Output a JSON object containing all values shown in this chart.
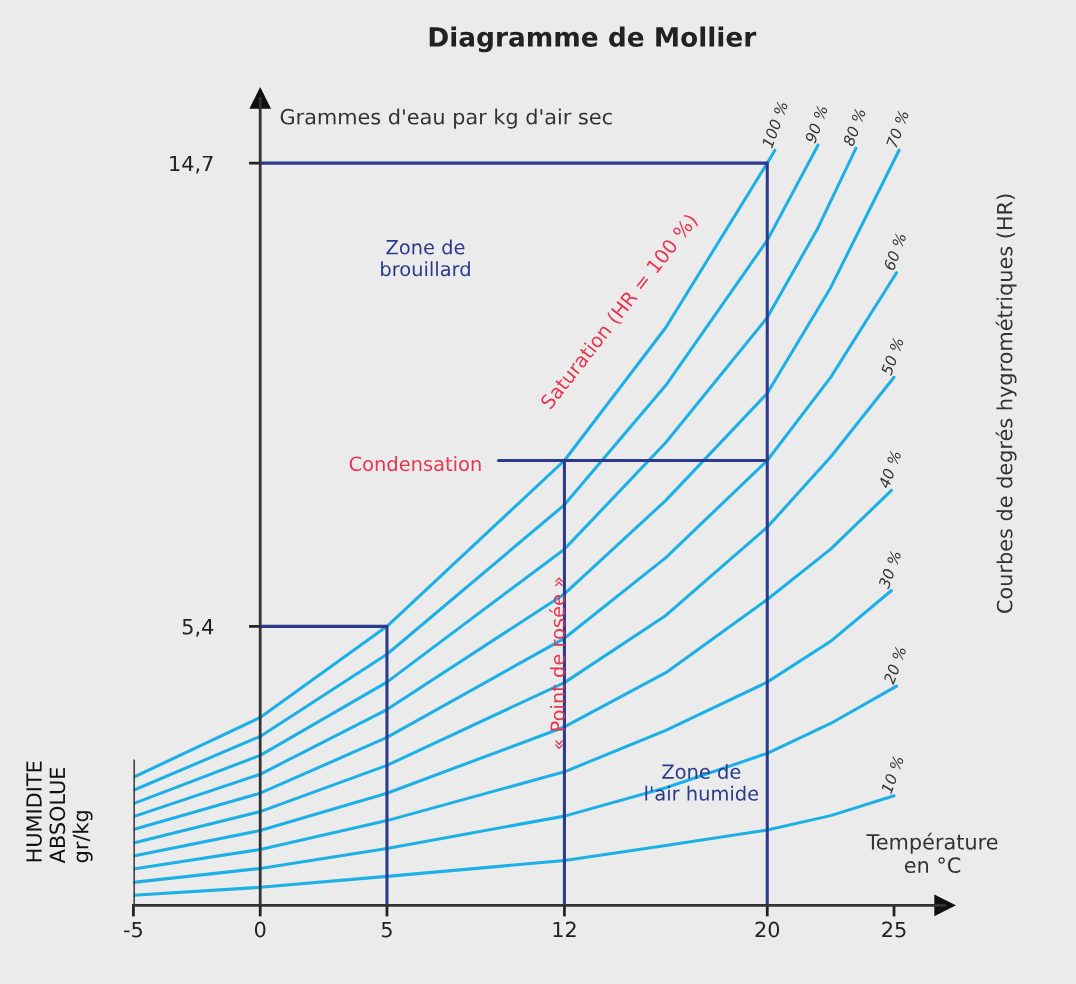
{
  "chart_data": {
    "type": "line",
    "title": "Diagramme de Mollier",
    "ylabel": "Grammes d'eau par kg d'air sec",
    "xlabel": "Température\nen °C",
    "annotations": [
      "HUMIDITE\nABSOLUE\ngr/kg",
      "Zone de\nbrouillard",
      "Zone de\nl'air humide",
      "Condensation",
      "Saturation (HR = 100 %)",
      "« Point de rosée »",
      "Courbes de degrés hygrométriques (HR)"
    ],
    "xlim": [
      -5,
      27
    ],
    "ylim": [
      -0.2,
      16
    ],
    "xticks": [
      {
        "value": -5,
        "label": "-5"
      },
      0,
      5,
      12,
      20,
      25
    ],
    "yticks": [
      {
        "value": 5.4,
        "label": "5,4"
      },
      {
        "value": 14.7,
        "label": "14,7"
      }
    ],
    "grid": false,
    "legend": false,
    "marker": "none",
    "line_style": "solid",
    "series": [
      {
        "name": "100 %",
        "color": "#1cb0e6",
        "x": [
          -5,
          0,
          5,
          12,
          16,
          20,
          20.3
        ],
        "values": [
          2.37,
          3.57,
          5.4,
          8.73,
          11.4,
          14.7,
          14.96
        ]
      },
      {
        "name": "90 %",
        "color": "#1cb0e6",
        "x": [
          -5,
          0,
          5,
          12,
          16,
          20,
          22
        ],
        "values": [
          2.11,
          3.19,
          4.84,
          7.84,
          10.24,
          13.15,
          15.06
        ]
      },
      {
        "name": "80 %",
        "color": "#1cb0e6",
        "x": [
          -5,
          0,
          5,
          12,
          16,
          20,
          22,
          23.5
        ],
        "values": [
          1.84,
          2.81,
          4.28,
          6.95,
          9.09,
          11.6,
          13.4,
          15.0
        ]
      },
      {
        "name": "70 %",
        "color": "#1cb0e6",
        "x": [
          -5,
          0,
          5,
          12,
          16,
          20,
          22.5,
          25.2
        ],
        "values": [
          1.58,
          2.43,
          3.73,
          6.05,
          7.93,
          10.08,
          12.2,
          14.96
        ]
      },
      {
        "name": "60 %",
        "color": "#1cb0e6",
        "x": [
          -5,
          0,
          5,
          12,
          16,
          20,
          22.5,
          25.1
        ],
        "values": [
          1.32,
          2.05,
          3.17,
          5.16,
          6.78,
          8.73,
          10.4,
          12.5
        ]
      },
      {
        "name": "50 %",
        "color": "#1cb0e6",
        "x": [
          -5,
          0,
          5,
          12,
          16,
          20,
          22.5,
          25
        ],
        "values": [
          1.05,
          1.68,
          2.61,
          4.27,
          5.62,
          7.39,
          8.8,
          10.4
        ]
      },
      {
        "name": "40 %",
        "color": "#1cb0e6",
        "x": [
          -5,
          0,
          5,
          12,
          16,
          20,
          22.5,
          24.9
        ],
        "values": [
          0.79,
          1.3,
          2.05,
          3.38,
          4.47,
          5.94,
          6.95,
          8.13
        ]
      },
      {
        "name": "30 %",
        "color": "#1cb0e6",
        "x": [
          -5,
          0,
          5,
          12,
          16,
          20,
          22.5,
          24.9
        ],
        "values": [
          0.53,
          0.92,
          1.5,
          2.48,
          3.31,
          4.28,
          5.1,
          6.12
        ]
      },
      {
        "name": "20 %",
        "color": "#1cb0e6",
        "x": [
          -5,
          0,
          5,
          12,
          16,
          20,
          22.5,
          25.1
        ],
        "values": [
          0.26,
          0.54,
          0.94,
          1.59,
          2.16,
          2.85,
          3.45,
          4.2
        ]
      },
      {
        "name": "10 %",
        "color": "#1cb0e6",
        "x": [
          -5,
          0,
          5,
          12,
          16,
          20,
          22.5,
          25
        ],
        "values": [
          0.0,
          0.16,
          0.38,
          0.7,
          1.0,
          1.31,
          1.6,
          2.0
        ]
      },
      {
        "color": "#2b3a8c",
        "x": [
          0,
          20,
          20
        ],
        "values": [
          14.7,
          14.7,
          -0.2
        ]
      },
      {
        "color": "#2b3a8c",
        "x": [
          0,
          5,
          5
        ],
        "values": [
          5.4,
          5.4,
          -0.2
        ]
      },
      {
        "color": "#2b3a8c",
        "x": [
          20,
          9.4
        ],
        "values": [
          8.73,
          8.73
        ]
      },
      {
        "color": "#2b3a8c",
        "x": [
          12,
          12
        ],
        "values": [
          8.73,
          -0.2
        ]
      },
      {
        "color": "#3a3a3a",
        "x": [
          -5,
          -5
        ],
        "values": [
          -0.2,
          2.7
        ]
      }
    ]
  }
}
